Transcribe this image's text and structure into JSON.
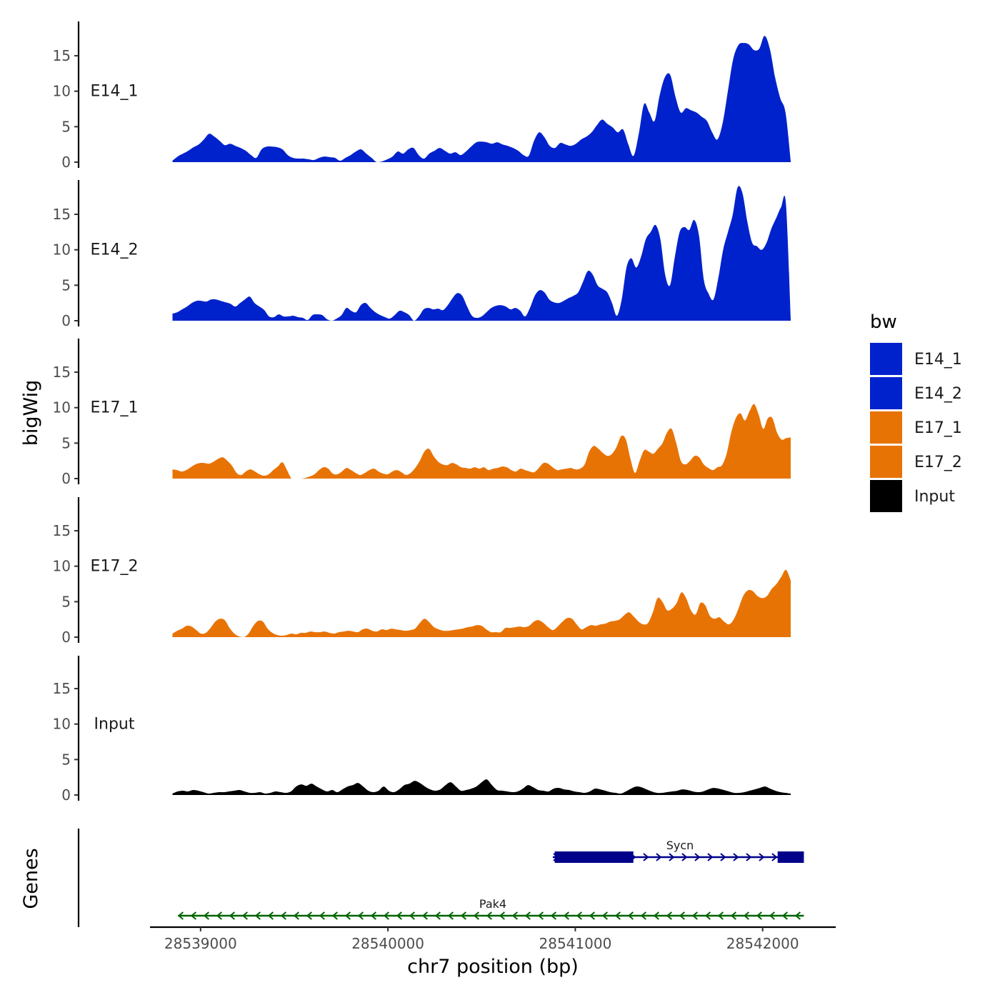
{
  "chart_data": {
    "type": "area",
    "layout": "stacked-tracks",
    "xlabel": "chr7 position (bp)",
    "ylabel_tracks": "bigWig",
    "ylabel_genes": "Genes",
    "xlim": [
      28538730,
      28542390
    ],
    "x_ticks": [
      28539000,
      28540000,
      28541000,
      28542000
    ],
    "x_tick_labels": [
      "28539000",
      "28540000",
      "28541000",
      "28542000"
    ],
    "ylim": [
      0,
      20
    ],
    "y_ticks": [
      0,
      5,
      10,
      15
    ],
    "y_tick_labels": [
      "0",
      "5",
      "10",
      "15"
    ],
    "x_range": [
      28538850,
      28542150
    ],
    "series": [
      {
        "name": "E14_1",
        "color": "#0022cc",
        "values": [
          0.2,
          0.8,
          1.2,
          1.6,
          2.1,
          2.5,
          3.2,
          4.0,
          3.6,
          3.0,
          2.4,
          2.6,
          2.3,
          2.0,
          1.6,
          1.0,
          0.6,
          1.8,
          2.2,
          2.2,
          2.1,
          1.8,
          1.0,
          0.6,
          0.5,
          0.5,
          0.4,
          0.3,
          0.6,
          0.8,
          0.7,
          0.6,
          0.2,
          0.6,
          1.0,
          1.5,
          1.8,
          1.2,
          0.6,
          0.0,
          0.1,
          0.4,
          0.8,
          1.5,
          1.2,
          1.8,
          2.0,
          1.0,
          0.5,
          1.2,
          1.6,
          2.0,
          1.6,
          1.2,
          1.4,
          1.0,
          1.5,
          2.2,
          2.8,
          2.9,
          2.8,
          2.6,
          2.8,
          2.5,
          2.3,
          2.0,
          1.6,
          1.0,
          0.9,
          3.0,
          4.2,
          3.5,
          2.3,
          2.0,
          2.7,
          2.5,
          2.3,
          2.6,
          3.2,
          3.6,
          4.2,
          5.2,
          6.0,
          5.4,
          4.9,
          4.2,
          4.6,
          2.5,
          0.9,
          4.0,
          8.2,
          7.0,
          5.8,
          9.5,
          12.0,
          12.3,
          9.2,
          7.0,
          7.6,
          7.3,
          7.0,
          6.4,
          5.8,
          4.2,
          3.2,
          5.5,
          10.0,
          14.5,
          16.5,
          16.8,
          16.6,
          15.8,
          16.0,
          17.8,
          16.0,
          12.0,
          9.0,
          7.0,
          0.2
        ]
      },
      {
        "name": "E14_2",
        "color": "#0022cc",
        "values": [
          1.0,
          1.2,
          1.6,
          2.0,
          2.5,
          2.8,
          2.8,
          2.7,
          3.0,
          3.0,
          2.8,
          2.6,
          2.4,
          2.0,
          2.5,
          3.0,
          3.4,
          2.5,
          2.0,
          1.5,
          0.6,
          0.5,
          0.9,
          0.6,
          0.6,
          0.7,
          0.5,
          0.4,
          0.1,
          0.8,
          0.9,
          0.8,
          0.2,
          0.0,
          0.3,
          0.8,
          1.8,
          1.4,
          1.2,
          2.2,
          2.5,
          1.8,
          1.2,
          0.8,
          0.5,
          0.3,
          0.8,
          1.4,
          1.2,
          0.8,
          0.0,
          0.6,
          1.6,
          1.8,
          1.6,
          1.7,
          1.5,
          2.2,
          3.2,
          3.9,
          3.5,
          2.0,
          0.7,
          0.4,
          0.6,
          1.2,
          1.8,
          2.1,
          2.2,
          2.0,
          1.6,
          1.8,
          1.4,
          0.6,
          1.8,
          3.5,
          4.3,
          4.0,
          3.0,
          2.6,
          2.5,
          2.8,
          3.2,
          3.5,
          4.0,
          5.5,
          7.0,
          6.5,
          5.0,
          4.5,
          4.0,
          2.5,
          0.7,
          3.0,
          7.5,
          8.8,
          7.5,
          9.0,
          11.5,
          12.5,
          13.5,
          11.5,
          6.5,
          5.0,
          9.0,
          12.5,
          13.2,
          12.8,
          14.2,
          12.0,
          5.8,
          3.8,
          3.0,
          6.0,
          10.0,
          12.5,
          15.0,
          18.8,
          18.0,
          14.0,
          11.0,
          10.5,
          10.0,
          11.0,
          13.0,
          14.5,
          16.0,
          16.5,
          0.2
        ]
      },
      {
        "name": "E17_1",
        "color": "#e87305",
        "values": [
          1.3,
          1.2,
          1.0,
          1.2,
          1.6,
          2.0,
          2.2,
          2.2,
          2.1,
          2.4,
          2.8,
          3.0,
          2.5,
          1.8,
          0.8,
          0.5,
          1.0,
          1.3,
          1.0,
          0.6,
          0.4,
          0.6,
          1.2,
          1.7,
          2.3,
          1.2,
          0.0,
          0.0,
          0.0,
          0.1,
          0.3,
          0.6,
          1.2,
          1.6,
          1.4,
          0.7,
          0.6,
          1.0,
          1.5,
          1.2,
          0.8,
          0.5,
          0.8,
          1.2,
          1.4,
          1.0,
          0.7,
          0.6,
          1.0,
          1.2,
          0.9,
          0.5,
          0.8,
          1.5,
          2.5,
          3.8,
          4.2,
          3.2,
          2.4,
          2.0,
          1.9,
          2.2,
          2.0,
          1.6,
          1.5,
          1.4,
          1.6,
          1.4,
          1.6,
          1.2,
          1.4,
          1.5,
          1.7,
          1.6,
          1.2,
          1.0,
          1.4,
          1.2,
          1.0,
          0.9,
          1.5,
          2.2,
          2.1,
          1.6,
          1.2,
          1.3,
          1.4,
          1.5,
          1.3,
          1.4,
          2.0,
          3.8,
          4.6,
          4.2,
          3.6,
          3.2,
          3.5,
          4.5,
          6.0,
          5.5,
          2.8,
          0.8,
          2.5,
          4.0,
          3.8,
          3.5,
          4.2,
          5.0,
          6.5,
          7.0,
          5.0,
          2.5,
          2.0,
          2.5,
          3.2,
          3.0,
          2.0,
          1.5,
          1.2,
          1.6,
          1.9,
          3.5,
          6.5,
          8.5,
          9.2,
          8.2,
          9.5,
          10.5,
          9.0,
          7.0,
          8.5,
          8.5,
          6.5,
          5.5,
          5.7,
          5.8
        ]
      },
      {
        "name": "E17_2",
        "color": "#e87305",
        "values": [
          0.5,
          0.9,
          1.2,
          1.6,
          1.5,
          1.0,
          0.5,
          0.6,
          1.3,
          2.2,
          2.6,
          2.4,
          1.3,
          0.5,
          0.1,
          0.0,
          0.5,
          1.6,
          2.3,
          2.2,
          1.2,
          0.6,
          0.3,
          0.2,
          0.3,
          0.5,
          0.4,
          0.6,
          0.6,
          0.8,
          0.7,
          0.7,
          0.8,
          0.6,
          0.5,
          0.7,
          0.8,
          0.9,
          0.8,
          0.7,
          1.1,
          1.2,
          0.9,
          0.8,
          1.1,
          1.0,
          1.2,
          1.1,
          1.0,
          0.9,
          1.0,
          1.2,
          2.0,
          2.6,
          2.1,
          1.4,
          1.1,
          0.9,
          0.9,
          1.0,
          1.1,
          1.2,
          1.4,
          1.5,
          1.7,
          1.6,
          1.1,
          0.7,
          0.7,
          0.7,
          1.3,
          1.3,
          1.4,
          1.5,
          1.4,
          1.6,
          2.2,
          2.4,
          2.0,
          1.4,
          1.0,
          1.5,
          2.2,
          2.7,
          2.6,
          1.8,
          1.1,
          1.4,
          1.7,
          1.6,
          1.8,
          1.9,
          2.2,
          2.3,
          2.5,
          3.1,
          3.5,
          2.9,
          2.2,
          1.8,
          2.0,
          3.5,
          5.5,
          5.0,
          3.8,
          4.0,
          4.8,
          6.3,
          5.5,
          3.8,
          3.2,
          4.8,
          4.5,
          3.0,
          2.6,
          2.8,
          2.2,
          1.8,
          2.5,
          4.0,
          5.8,
          6.6,
          6.5,
          5.8,
          5.5,
          5.8,
          6.8,
          7.5,
          8.5,
          9.5,
          8.0
        ]
      },
      {
        "name": "Input",
        "color": "#000000",
        "values": [
          0.2,
          0.5,
          0.6,
          0.5,
          0.7,
          0.6,
          0.4,
          0.2,
          0.3,
          0.4,
          0.4,
          0.5,
          0.6,
          0.7,
          0.5,
          0.3,
          0.3,
          0.4,
          0.2,
          0.3,
          0.5,
          0.4,
          0.3,
          0.5,
          1.2,
          1.5,
          1.3,
          1.6,
          1.2,
          0.8,
          0.5,
          0.7,
          0.4,
          0.8,
          1.2,
          1.4,
          1.7,
          1.2,
          0.6,
          0.4,
          0.6,
          1.2,
          0.6,
          0.4,
          0.8,
          1.4,
          1.6,
          2.0,
          1.7,
          1.2,
          0.8,
          0.6,
          0.8,
          1.4,
          1.8,
          1.2,
          0.6,
          0.7,
          0.9,
          1.2,
          1.8,
          2.2,
          1.4,
          0.7,
          0.6,
          0.5,
          0.4,
          0.5,
          0.9,
          1.4,
          1.1,
          0.7,
          0.6,
          0.5,
          0.9,
          1.0,
          0.8,
          0.7,
          0.5,
          0.4,
          0.3,
          0.5,
          0.9,
          0.8,
          0.6,
          0.4,
          0.3,
          0.2,
          0.5,
          0.9,
          1.2,
          1.1,
          0.8,
          0.5,
          0.3,
          0.3,
          0.4,
          0.5,
          0.6,
          0.8,
          0.7,
          0.5,
          0.4,
          0.5,
          0.8,
          1.0,
          0.9,
          0.7,
          0.5,
          0.3,
          0.3,
          0.4,
          0.6,
          0.8,
          1.0,
          1.2,
          0.9,
          0.6,
          0.4,
          0.3,
          0.2
        ]
      }
    ],
    "legend": {
      "title": "bw",
      "position": "right",
      "entries": [
        {
          "label": "E14_1",
          "color": "#0022cc"
        },
        {
          "label": "E14_2",
          "color": "#0022cc"
        },
        {
          "label": "E17_1",
          "color": "#e87305"
        },
        {
          "label": "E17_2",
          "color": "#e87305"
        },
        {
          "label": "Input",
          "color": "#000000"
        }
      ]
    },
    "genes": [
      {
        "name": "Sycn",
        "strand": "+",
        "color": "#00008b",
        "start": 28540880,
        "end": 28542220,
        "exons": [
          [
            28540890,
            28541310
          ],
          [
            28542080,
            28542220
          ]
        ]
      },
      {
        "name": "Pak4",
        "strand": "-",
        "color": "#006400",
        "start": 28538880,
        "end": 28542220,
        "exons": []
      }
    ]
  }
}
